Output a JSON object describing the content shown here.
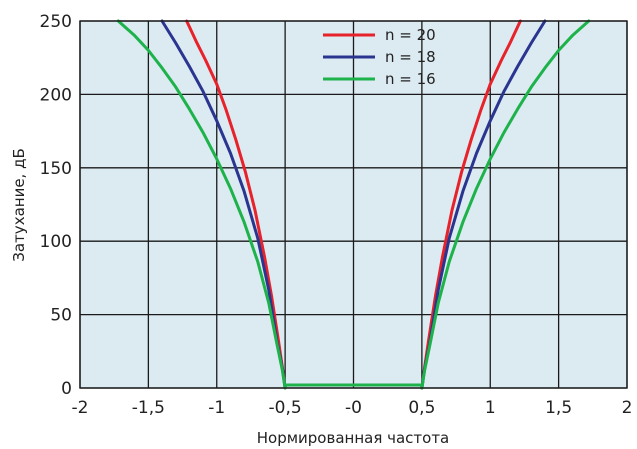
{
  "chart_data": {
    "type": "line",
    "xlabel": "Нормированная частота",
    "ylabel": "Затухание, дБ",
    "xlim": [
      -2,
      2
    ],
    "ylim": [
      0,
      250
    ],
    "x_ticks": [
      -2,
      -1.5,
      -1,
      -0.5,
      0,
      0.5,
      1,
      1.5,
      2
    ],
    "x_tick_labels": [
      "-2",
      "-1,5",
      "-1",
      "-0,5",
      "-0",
      "0,5",
      "1",
      "1,5",
      "2"
    ],
    "y_ticks": [
      0,
      50,
      100,
      150,
      200,
      250
    ],
    "y_tick_labels": [
      "0",
      "50",
      "100",
      "150",
      "200",
      "250"
    ],
    "grid": true,
    "legend_position": "top-center",
    "plot_background": "#dceaf2",
    "series": [
      {
        "name": "n = 20",
        "color": "#e8222a",
        "x": [
          -1.22,
          -1.15,
          -1.08,
          -1.0,
          -0.93,
          -0.86,
          -0.79,
          -0.72,
          -0.65,
          -0.6,
          -0.55,
          -0.52,
          -0.5,
          -0.5,
          0.5,
          0.5,
          0.52,
          0.55,
          0.6,
          0.65,
          0.72,
          0.79,
          0.86,
          0.93,
          1.0,
          1.08,
          1.15,
          1.22
        ],
        "y": [
          250,
          236,
          223,
          207,
          189,
          169,
          147,
          121,
          89,
          63,
          33,
          14,
          0,
          2,
          2,
          0,
          14,
          33,
          63,
          89,
          121,
          147,
          169,
          189,
          207,
          223,
          236,
          250
        ]
      },
      {
        "name": "n = 18",
        "color": "#2a3590",
        "x": [
          -1.4,
          -1.3,
          -1.2,
          -1.1,
          -1.0,
          -0.9,
          -0.8,
          -0.7,
          -0.62,
          -0.56,
          -0.52,
          -0.5,
          -0.5,
          0.5,
          0.5,
          0.52,
          0.56,
          0.62,
          0.7,
          0.8,
          0.9,
          1.0,
          1.1,
          1.2,
          1.3,
          1.4
        ],
        "y": [
          250,
          235,
          219,
          202,
          182,
          160,
          134,
          102,
          67,
          32,
          13,
          0,
          2,
          2,
          0,
          13,
          32,
          67,
          102,
          134,
          160,
          182,
          202,
          219,
          235,
          250
        ]
      },
      {
        "name": "n = 16",
        "color": "#1db34a",
        "x": [
          -1.72,
          -1.6,
          -1.5,
          -1.4,
          -1.3,
          -1.2,
          -1.1,
          -1.0,
          -0.9,
          -0.8,
          -0.7,
          -0.62,
          -0.56,
          -0.52,
          -0.5,
          -0.5,
          0.5,
          0.5,
          0.52,
          0.56,
          0.62,
          0.7,
          0.8,
          0.9,
          1.0,
          1.1,
          1.2,
          1.3,
          1.4,
          1.5,
          1.6,
          1.72
        ],
        "y": [
          250,
          240,
          230,
          218,
          205,
          190,
          174,
          156,
          136,
          113,
          86,
          58,
          30,
          12,
          0,
          2,
          2,
          0,
          12,
          30,
          58,
          86,
          113,
          136,
          156,
          174,
          190,
          205,
          218,
          230,
          240,
          250
        ]
      }
    ]
  }
}
